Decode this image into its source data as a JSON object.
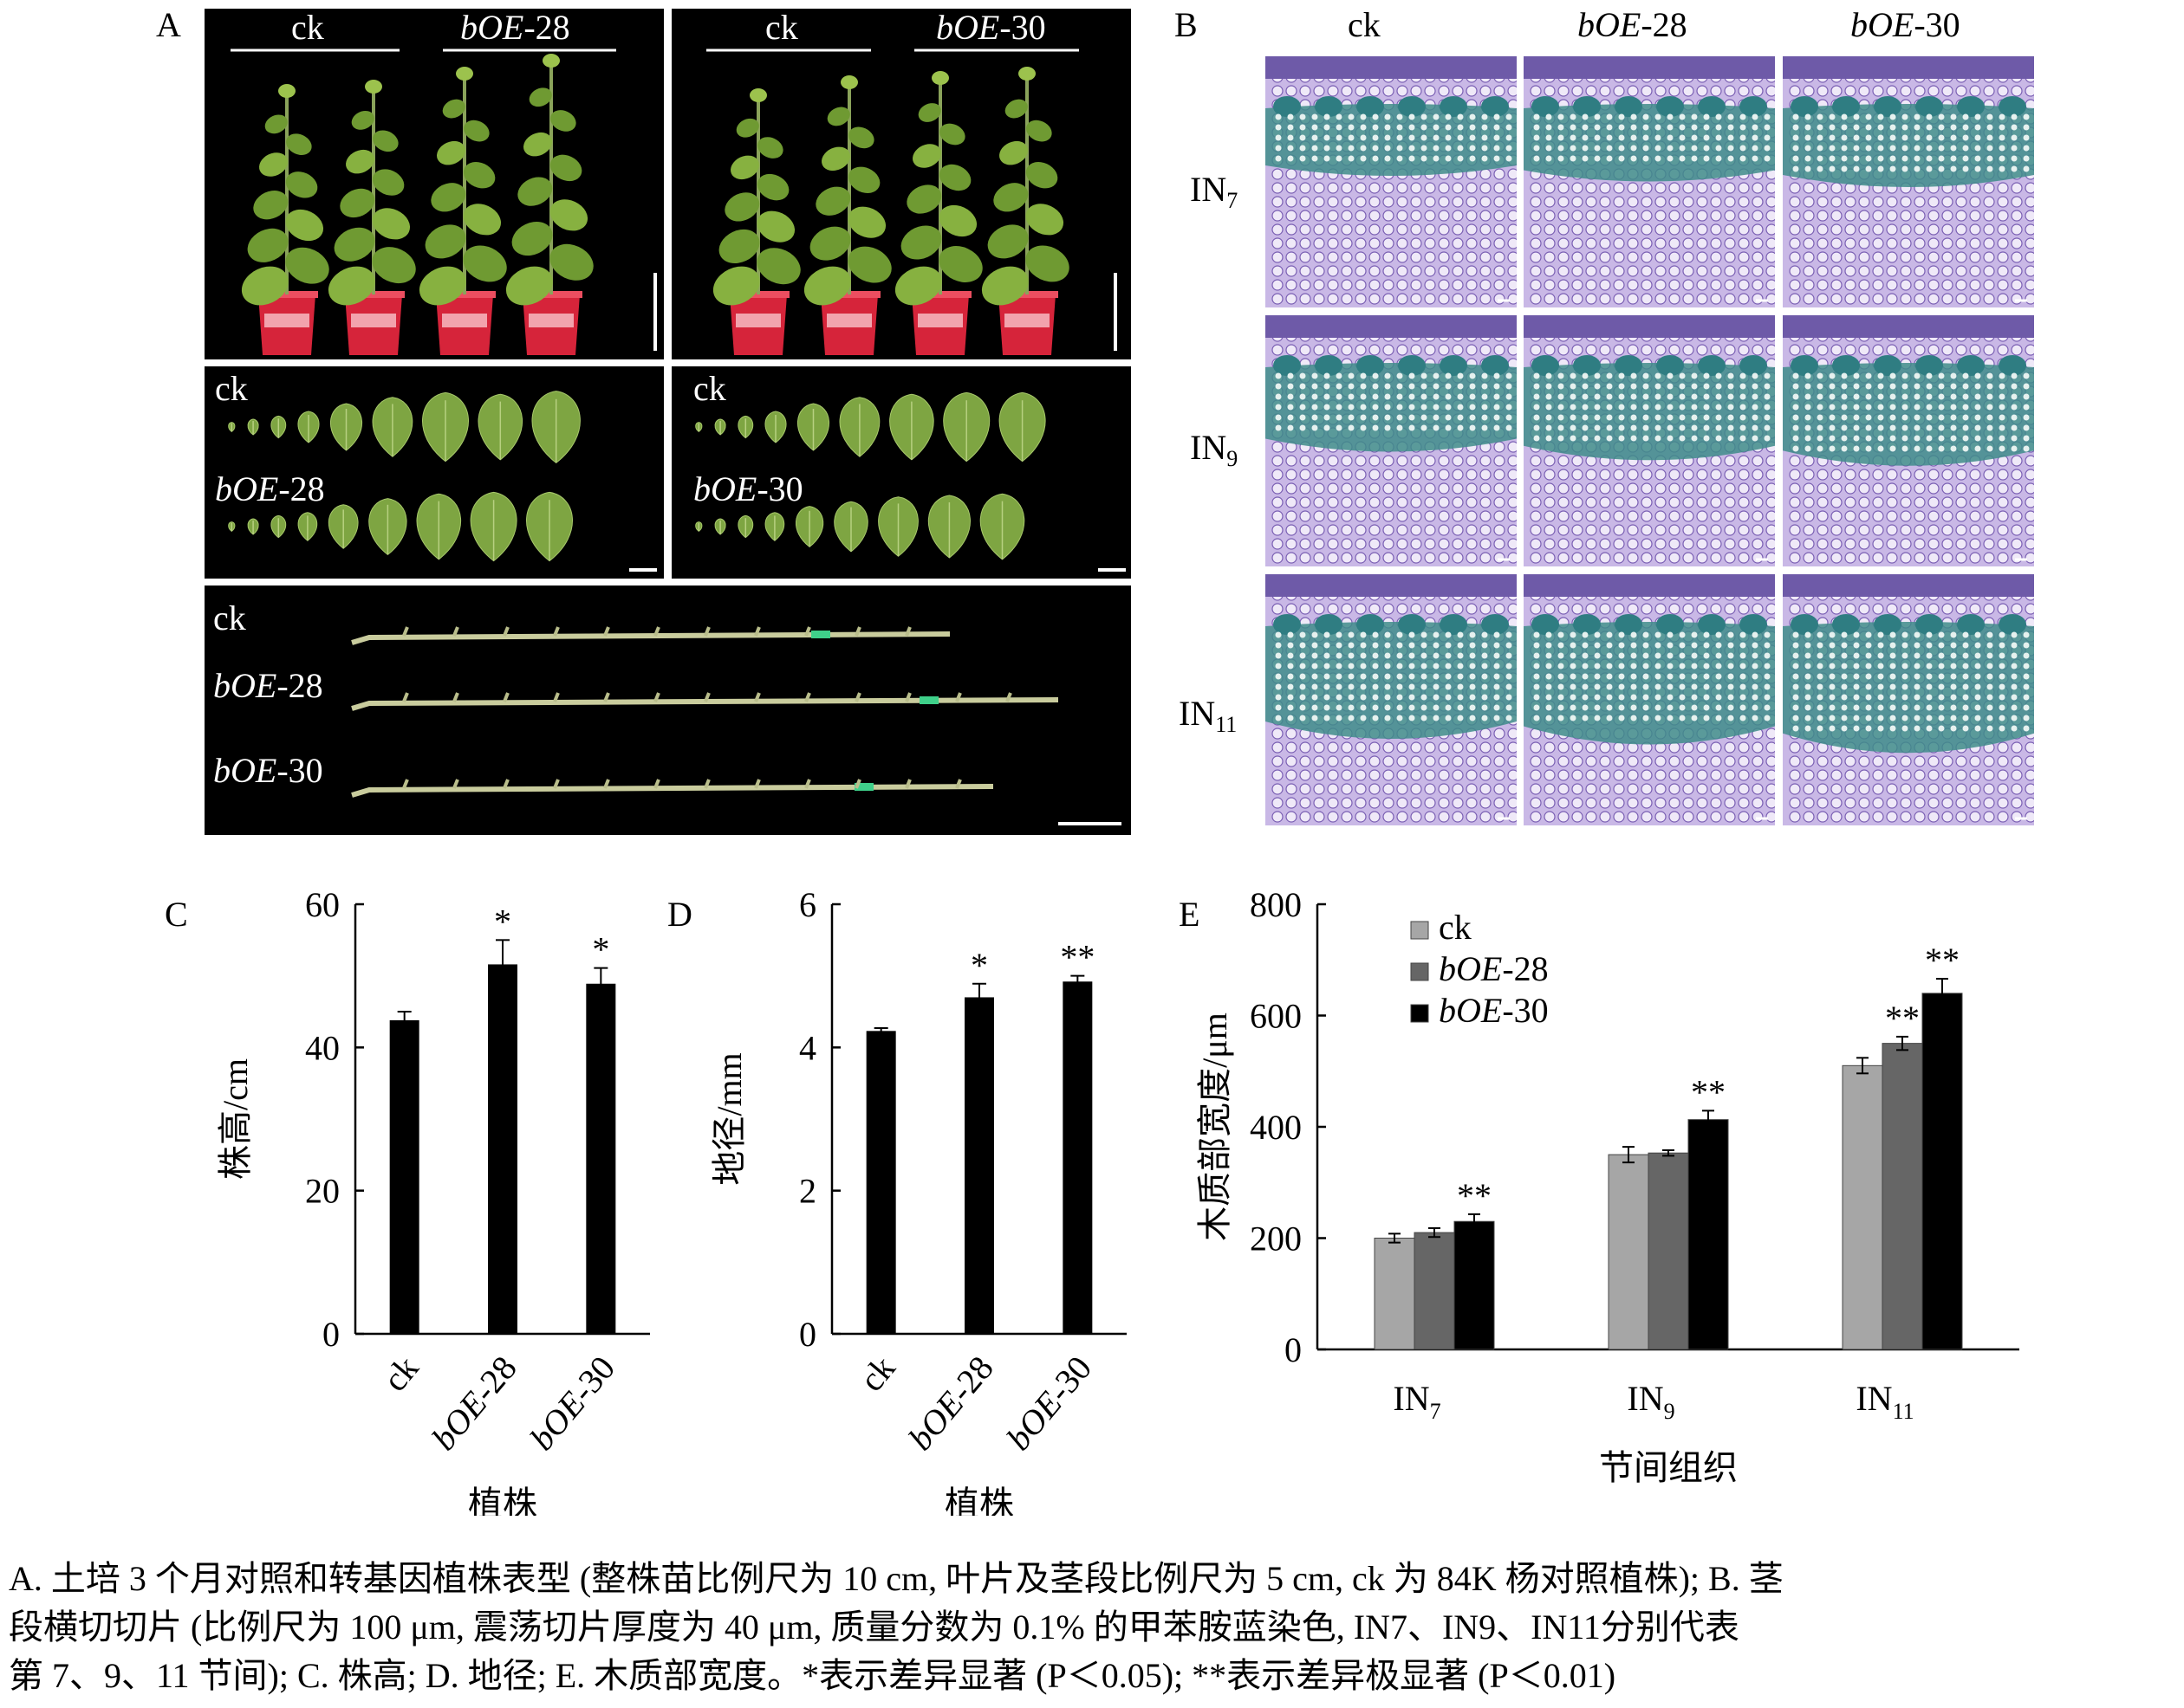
{
  "panels": {
    "a": "A",
    "b": "B",
    "c": "C",
    "d": "D",
    "e": "E"
  },
  "panel_a": {
    "top_left": {
      "left_label": "ck",
      "right_label": "bOE",
      "right_suffix": "-28"
    },
    "top_right": {
      "left_label": "ck",
      "right_label": "bOE",
      "right_suffix": "-30"
    },
    "leaves_left": {
      "row1": "ck",
      "row2": "bOE",
      "row2_suffix": "-28"
    },
    "leaves_right": {
      "row1": "ck",
      "row2": "bOE",
      "row2_suffix": "-30"
    },
    "stems": {
      "row1": "ck",
      "row2": "bOE",
      "row2_suffix": "-28",
      "row3": "bOE",
      "row3_suffix": "-30"
    }
  },
  "panel_b": {
    "columns": [
      {
        "name": "ck",
        "suffix": ""
      },
      {
        "name": "bOE",
        "suffix": "-28"
      },
      {
        "name": "bOE",
        "suffix": "-30"
      }
    ],
    "rows": [
      {
        "name": "IN",
        "sub": "7"
      },
      {
        "name": "IN",
        "sub": "9"
      },
      {
        "name": "IN",
        "sub": "11"
      }
    ]
  },
  "chart_data": [
    {
      "type": "bar",
      "id": "C",
      "categories": [
        "ck",
        "bOE-28",
        "bOE-30"
      ],
      "values": [
        43.8,
        51.6,
        48.9
      ],
      "errors": [
        1.2,
        3.4,
        2.2
      ],
      "significance": [
        "",
        "*",
        "*"
      ],
      "xlabel": "植株",
      "ylabel": "株高/cm",
      "ylim": [
        0,
        60
      ],
      "yticks": [
        0,
        20,
        40,
        60
      ],
      "color": "#000000"
    },
    {
      "type": "bar",
      "id": "D",
      "categories": [
        "ck",
        "bOE-28",
        "bOE-30"
      ],
      "values": [
        4.23,
        4.7,
        4.92
      ],
      "errors": [
        0.04,
        0.19,
        0.08
      ],
      "significance": [
        "",
        "*",
        "**"
      ],
      "xlabel": "植株",
      "ylabel": "地径/mm",
      "ylim": [
        0,
        6
      ],
      "yticks": [
        0,
        2,
        4,
        6
      ],
      "color": "#000000"
    },
    {
      "type": "bar",
      "id": "E",
      "categories": [
        "IN7",
        "IN9",
        "IN11"
      ],
      "series": [
        {
          "name": "ck",
          "values": [
            200,
            350,
            510
          ],
          "errors": [
            8,
            14,
            14
          ],
          "significance": [
            "",
            "",
            ""
          ],
          "color": "#a6a6a6"
        },
        {
          "name": "bOE-28",
          "values": [
            210,
            353,
            550
          ],
          "errors": [
            8,
            5,
            12
          ],
          "significance": [
            "",
            "",
            "**"
          ],
          "color": "#666666"
        },
        {
          "name": "bOE-30",
          "values": [
            230,
            413,
            640
          ],
          "errors": [
            13,
            16,
            26
          ],
          "significance": [
            "**",
            "**",
            "**"
          ],
          "color": "#000000"
        }
      ],
      "xlabel": "节间组织",
      "ylabel": "木质部宽度/μm",
      "ylim": [
        0,
        800
      ],
      "yticks": [
        0,
        200,
        400,
        600,
        800
      ],
      "legend": "top-left"
    }
  ],
  "caption": {
    "line1": "A. 土培 3 个月对照和转基因植株表型 (整株苗比例尺为 10 cm, 叶片及茎段比例尺为 5 cm, ck 为 84K 杨对照植株); B. 茎",
    "line2": "段横切切片 (比例尺为 100 μm, 震荡切片厚度为 40 μm, 质量分数为 0.1% 的甲苯胺蓝染色, IN7、IN9、IN11分别代表",
    "line3": "第 7、9、11 节间); C. 株高; D. 地径; E. 木质部宽度。*表示差异显著 (P＜0.05); **表示差异极显著 (P＜0.01)"
  }
}
